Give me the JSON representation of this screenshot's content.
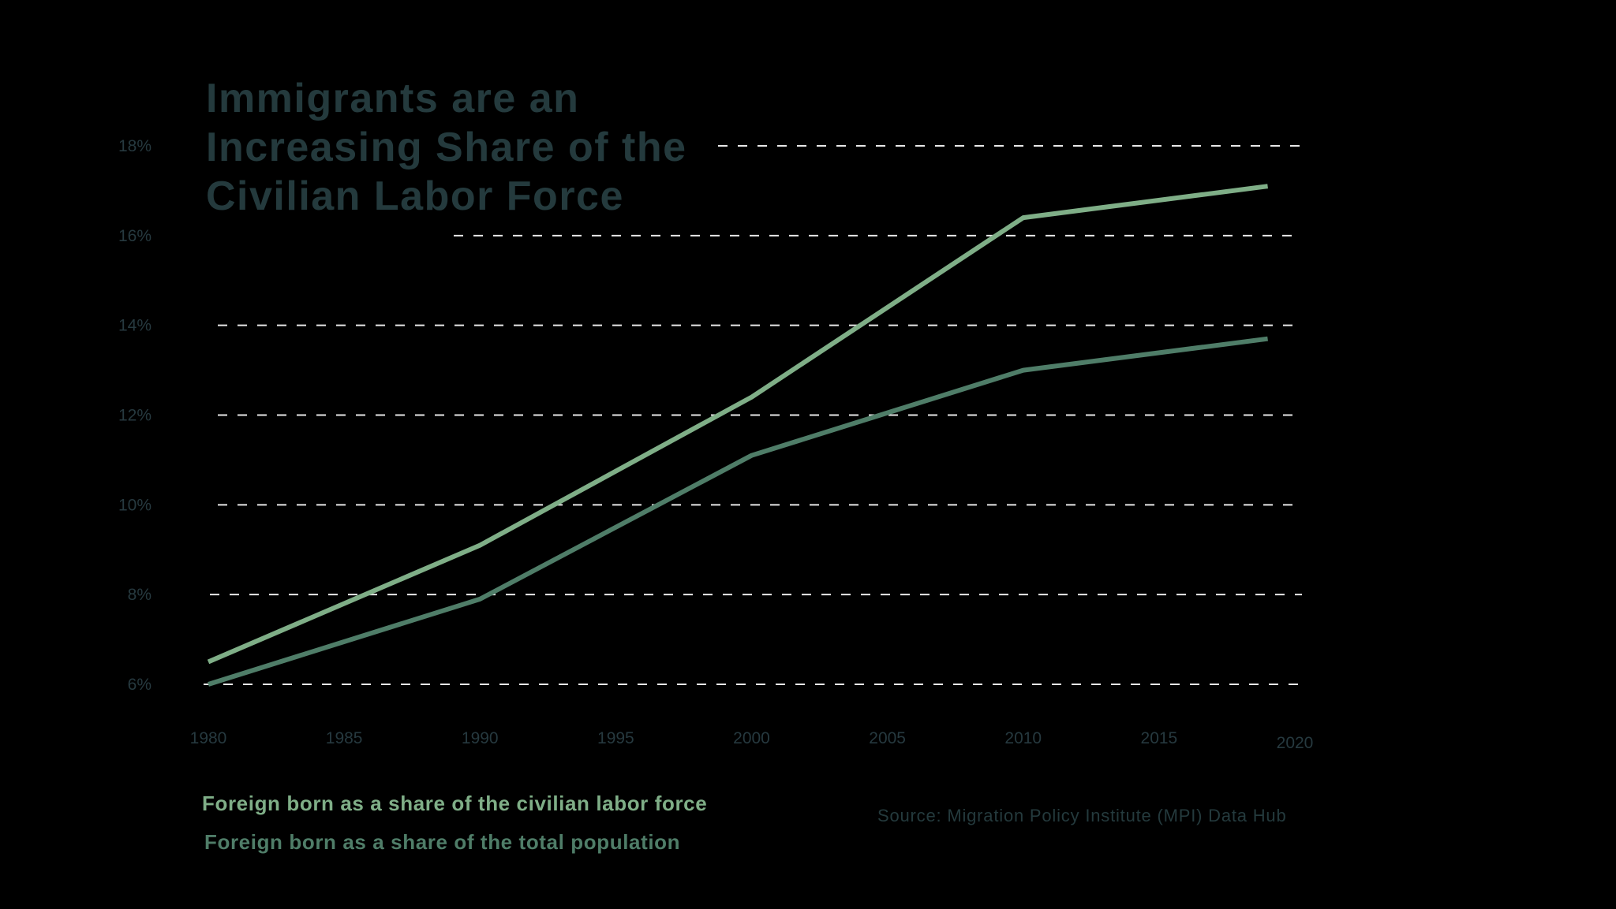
{
  "colors": {
    "background": "#000000",
    "title": "#243a3d",
    "axis_text": "#26393f",
    "gridline": "#e8e8e8",
    "series_labor_force": "#7fae87",
    "series_population": "#4f7d68",
    "source_text": "#243a3d"
  },
  "chart_data": {
    "type": "line",
    "title": "Immigrants are an Increasing Share of the Civilian Labor Force",
    "xlabel": "",
    "ylabel": "",
    "x_ticks": [
      "1980",
      "1985",
      "1990",
      "1995",
      "2000",
      "2005",
      "2010",
      "2015",
      "2020"
    ],
    "y_ticks": [
      "6%",
      "8%",
      "10%",
      "12%",
      "14%",
      "16%",
      "18%"
    ],
    "xlim": [
      1980,
      2020
    ],
    "ylim": [
      6,
      18
    ],
    "grid": "horizontal dashed",
    "legend_position": "bottom-left",
    "series": [
      {
        "name": "Foreign born as a share of the civilian labor force",
        "x": [
          1980,
          1990,
          2000,
          2010,
          2019
        ],
        "y": [
          6.5,
          9.1,
          12.4,
          16.4,
          17.1
        ]
      },
      {
        "name": "Foreign born as a share of the total population",
        "x": [
          1980,
          1990,
          2000,
          2010,
          2019
        ],
        "y": [
          6.0,
          7.9,
          11.1,
          13.0,
          13.7
        ]
      }
    ]
  },
  "source": "Source: Migration Policy Institute (MPI) Data Hub"
}
